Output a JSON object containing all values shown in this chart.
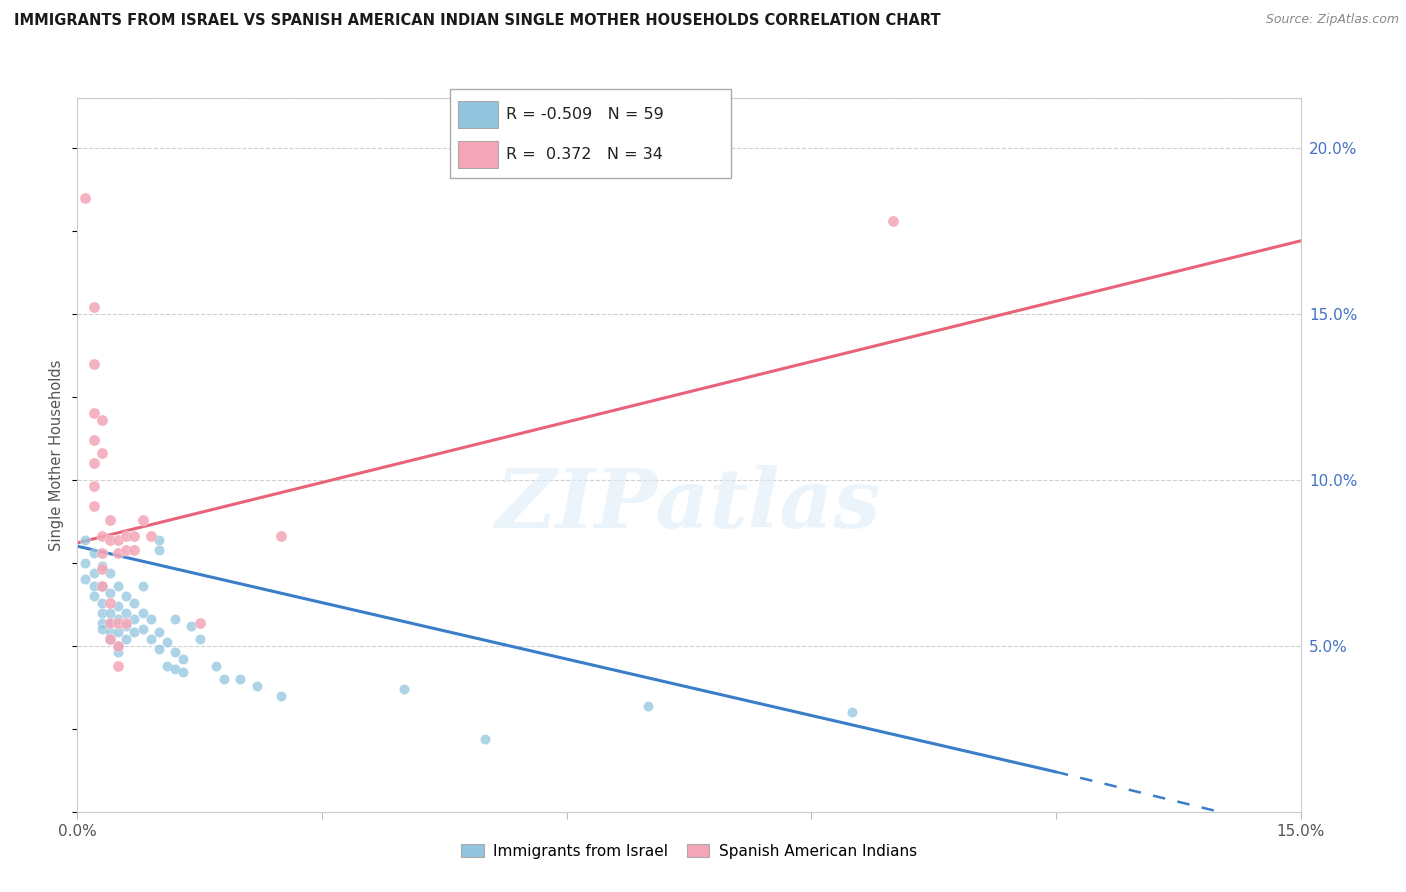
{
  "title": "IMMIGRANTS FROM ISRAEL VS SPANISH AMERICAN INDIAN SINGLE MOTHER HOUSEHOLDS CORRELATION CHART",
  "source": "Source: ZipAtlas.com",
  "ylabel": "Single Mother Households",
  "yticks": [
    0.0,
    0.05,
    0.1,
    0.15,
    0.2
  ],
  "ytick_labels": [
    "",
    "5.0%",
    "10.0%",
    "15.0%",
    "20.0%"
  ],
  "xlim": [
    0.0,
    0.15
  ],
  "ylim": [
    0.0,
    0.215
  ],
  "legend": {
    "blue_r": "-0.509",
    "blue_n": "59",
    "pink_r": "0.372",
    "pink_n": "34"
  },
  "blue_color": "#92c5de",
  "pink_color": "#f4a6b8",
  "blue_line_color": "#3a7dc9",
  "pink_line_color": "#e8637a",
  "blue_line": [
    [
      0.0,
      0.08
    ],
    [
      0.12,
      0.012
    ]
  ],
  "pink_line": [
    [
      0.0,
      0.081
    ],
    [
      0.15,
      0.172
    ]
  ],
  "blue_dashed_line": [
    [
      0.12,
      0.012
    ],
    [
      0.15,
      -0.006
    ]
  ],
  "watermark_text": "ZIPatlas",
  "blue_scatter": [
    [
      0.001,
      0.082
    ],
    [
      0.001,
      0.075
    ],
    [
      0.001,
      0.07
    ],
    [
      0.002,
      0.078
    ],
    [
      0.002,
      0.072
    ],
    [
      0.002,
      0.068
    ],
    [
      0.002,
      0.065
    ],
    [
      0.003,
      0.074
    ],
    [
      0.003,
      0.068
    ],
    [
      0.003,
      0.063
    ],
    [
      0.003,
      0.06
    ],
    [
      0.003,
      0.057
    ],
    [
      0.003,
      0.055
    ],
    [
      0.004,
      0.072
    ],
    [
      0.004,
      0.066
    ],
    [
      0.004,
      0.06
    ],
    [
      0.004,
      0.057
    ],
    [
      0.004,
      0.054
    ],
    [
      0.004,
      0.052
    ],
    [
      0.005,
      0.068
    ],
    [
      0.005,
      0.062
    ],
    [
      0.005,
      0.058
    ],
    [
      0.005,
      0.054
    ],
    [
      0.005,
      0.05
    ],
    [
      0.005,
      0.048
    ],
    [
      0.006,
      0.065
    ],
    [
      0.006,
      0.06
    ],
    [
      0.006,
      0.056
    ],
    [
      0.006,
      0.052
    ],
    [
      0.007,
      0.063
    ],
    [
      0.007,
      0.058
    ],
    [
      0.007,
      0.054
    ],
    [
      0.008,
      0.068
    ],
    [
      0.008,
      0.06
    ],
    [
      0.008,
      0.055
    ],
    [
      0.009,
      0.058
    ],
    [
      0.009,
      0.052
    ],
    [
      0.01,
      0.082
    ],
    [
      0.01,
      0.079
    ],
    [
      0.01,
      0.054
    ],
    [
      0.01,
      0.049
    ],
    [
      0.011,
      0.051
    ],
    [
      0.011,
      0.044
    ],
    [
      0.012,
      0.058
    ],
    [
      0.012,
      0.048
    ],
    [
      0.012,
      0.043
    ],
    [
      0.013,
      0.046
    ],
    [
      0.013,
      0.042
    ],
    [
      0.014,
      0.056
    ],
    [
      0.015,
      0.052
    ],
    [
      0.017,
      0.044
    ],
    [
      0.018,
      0.04
    ],
    [
      0.02,
      0.04
    ],
    [
      0.022,
      0.038
    ],
    [
      0.025,
      0.035
    ],
    [
      0.04,
      0.037
    ],
    [
      0.05,
      0.022
    ],
    [
      0.07,
      0.032
    ],
    [
      0.095,
      0.03
    ]
  ],
  "pink_scatter": [
    [
      0.001,
      0.185
    ],
    [
      0.002,
      0.152
    ],
    [
      0.002,
      0.135
    ],
    [
      0.002,
      0.12
    ],
    [
      0.002,
      0.112
    ],
    [
      0.002,
      0.105
    ],
    [
      0.002,
      0.098
    ],
    [
      0.002,
      0.092
    ],
    [
      0.003,
      0.118
    ],
    [
      0.003,
      0.108
    ],
    [
      0.003,
      0.083
    ],
    [
      0.003,
      0.078
    ],
    [
      0.003,
      0.073
    ],
    [
      0.003,
      0.068
    ],
    [
      0.004,
      0.088
    ],
    [
      0.004,
      0.082
    ],
    [
      0.004,
      0.063
    ],
    [
      0.004,
      0.057
    ],
    [
      0.004,
      0.052
    ],
    [
      0.005,
      0.082
    ],
    [
      0.005,
      0.078
    ],
    [
      0.005,
      0.057
    ],
    [
      0.005,
      0.05
    ],
    [
      0.005,
      0.044
    ],
    [
      0.006,
      0.083
    ],
    [
      0.006,
      0.079
    ],
    [
      0.006,
      0.057
    ],
    [
      0.007,
      0.083
    ],
    [
      0.007,
      0.079
    ],
    [
      0.008,
      0.088
    ],
    [
      0.009,
      0.083
    ],
    [
      0.015,
      0.057
    ],
    [
      0.025,
      0.083
    ],
    [
      0.1,
      0.178
    ]
  ]
}
